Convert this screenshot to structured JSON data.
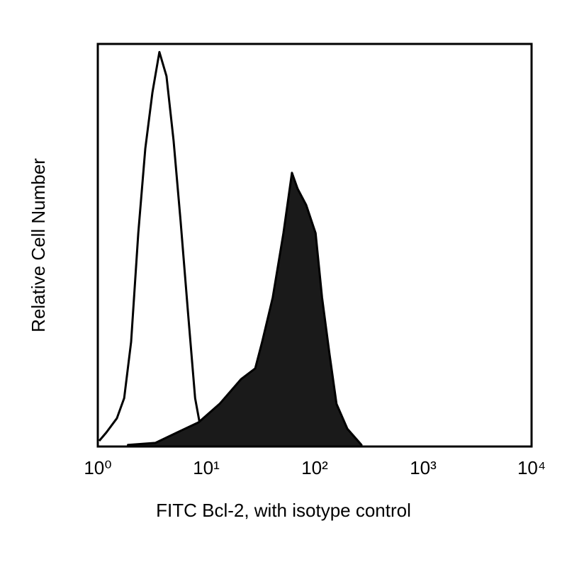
{
  "chart_data": {
    "type": "histogram-overlay",
    "x_label": "FITC Bcl-2, with isotype control",
    "y_label": "Relative Cell Number",
    "xscale": "log",
    "xlim": [
      1,
      10000
    ],
    "xticks": [
      {
        "value": 1,
        "label": "10⁰"
      },
      {
        "value": 10,
        "label": "10¹"
      },
      {
        "value": 100,
        "label": "10²"
      },
      {
        "value": 1000,
        "label": "10³"
      },
      {
        "value": 10000,
        "label": "10⁴"
      }
    ],
    "ylim": [
      0,
      100
    ],
    "series": [
      {
        "color": "#000000",
        "filled": false,
        "x": [
          1.03,
          1.2,
          1.5,
          1.75,
          2.03,
          2.36,
          2.74,
          3.19,
          3.7,
          4.3,
          5.0,
          5.8,
          6.8,
          7.9,
          9.1,
          10.6
        ],
        "values": [
          1.4,
          3.5,
          7,
          12,
          26,
          53,
          74,
          88,
          98,
          92,
          76,
          56,
          33,
          12,
          3,
          0.4
        ]
      },
      {
        "color": "#1a1a1a",
        "filled": true,
        "x": [
          1.9,
          3.4,
          5.4,
          8.5,
          13.3,
          20.9,
          28.3,
          32.8,
          41,
          51.5,
          61.7,
          69.7,
          83.5,
          102,
          117,
          137,
          159,
          200,
          270
        ],
        "values": [
          0.4,
          0.9,
          3.5,
          6,
          10.6,
          16.7,
          19.4,
          26,
          37,
          53,
          68,
          64,
          60,
          53,
          37,
          23,
          10.6,
          4.4,
          0.4
        ]
      }
    ]
  }
}
